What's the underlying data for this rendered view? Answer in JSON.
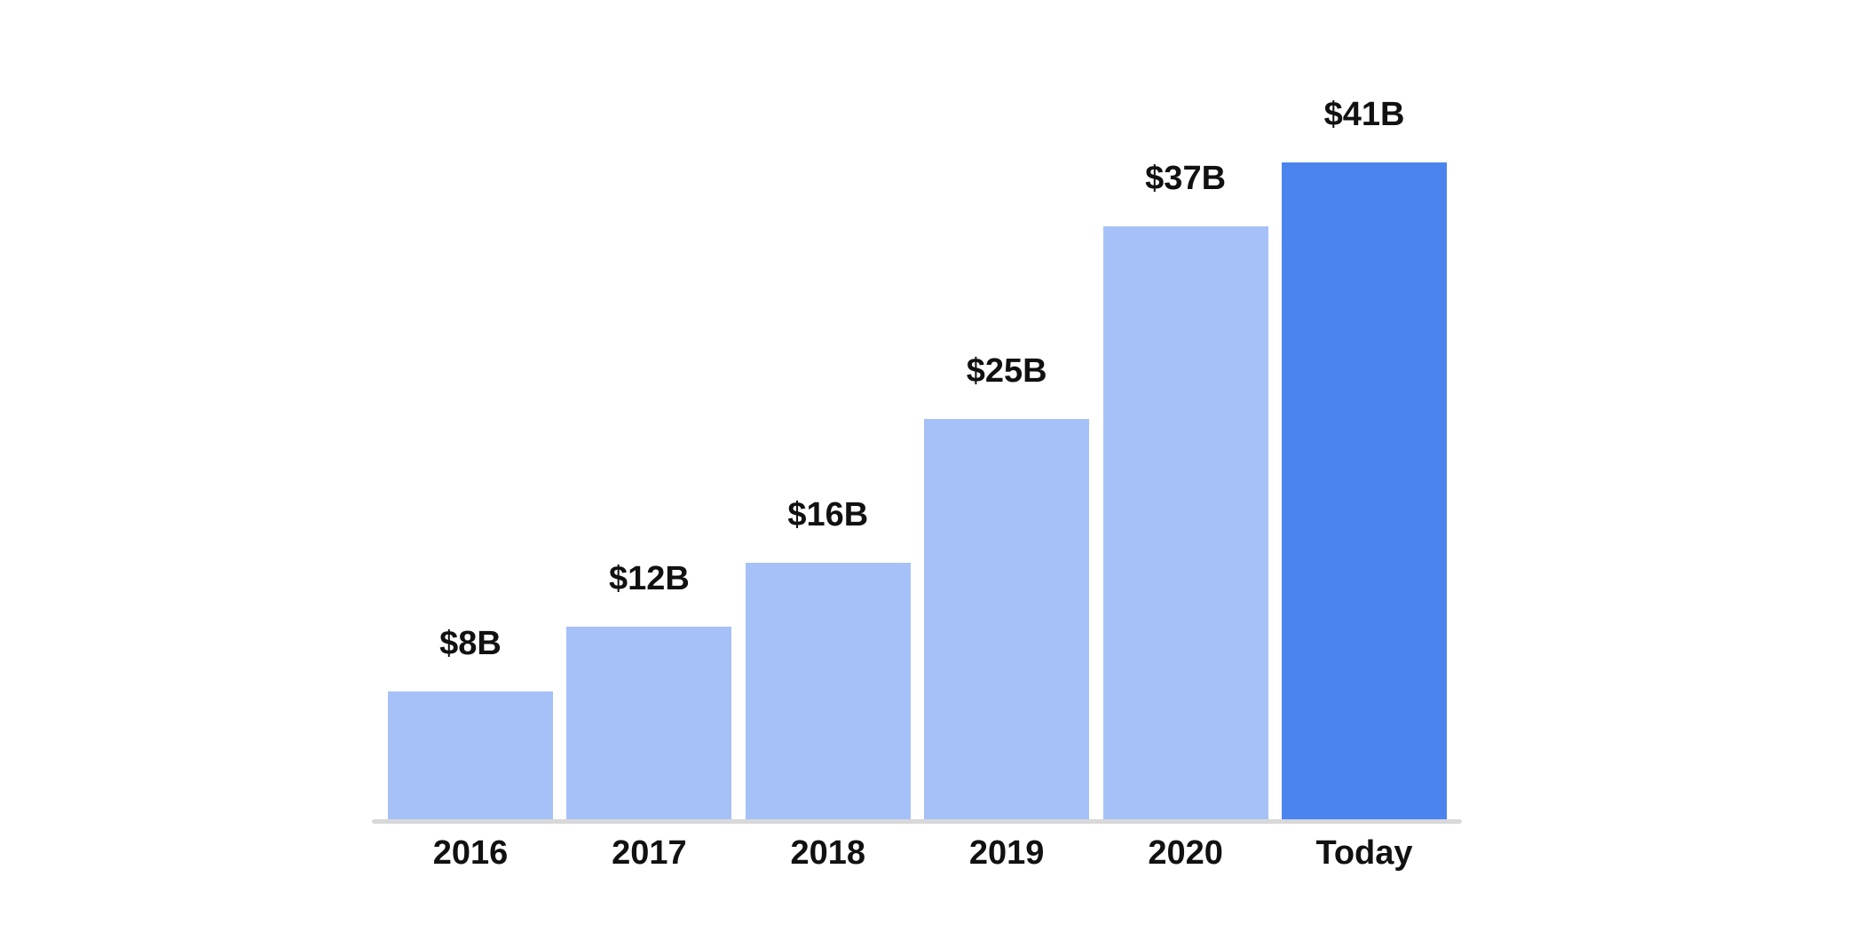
{
  "chart_data": {
    "type": "bar",
    "categories": [
      "2016",
      "2017",
      "2018",
      "2019",
      "2020",
      "Today"
    ],
    "values": [
      8,
      12,
      16,
      25,
      37,
      41
    ],
    "value_labels": [
      "$8B",
      "$12B",
      "$16B",
      "$25B",
      "$37B",
      "$41B"
    ],
    "ylim": [
      0,
      41
    ],
    "grid": false,
    "legend": "none",
    "highlight_index": 5,
    "colors": {
      "bar": "#a6c1f7",
      "bar_highlight": "#4c84ef",
      "axis_line": "#d8d8d8",
      "text": "#111111",
      "background": "#ffffff"
    }
  }
}
